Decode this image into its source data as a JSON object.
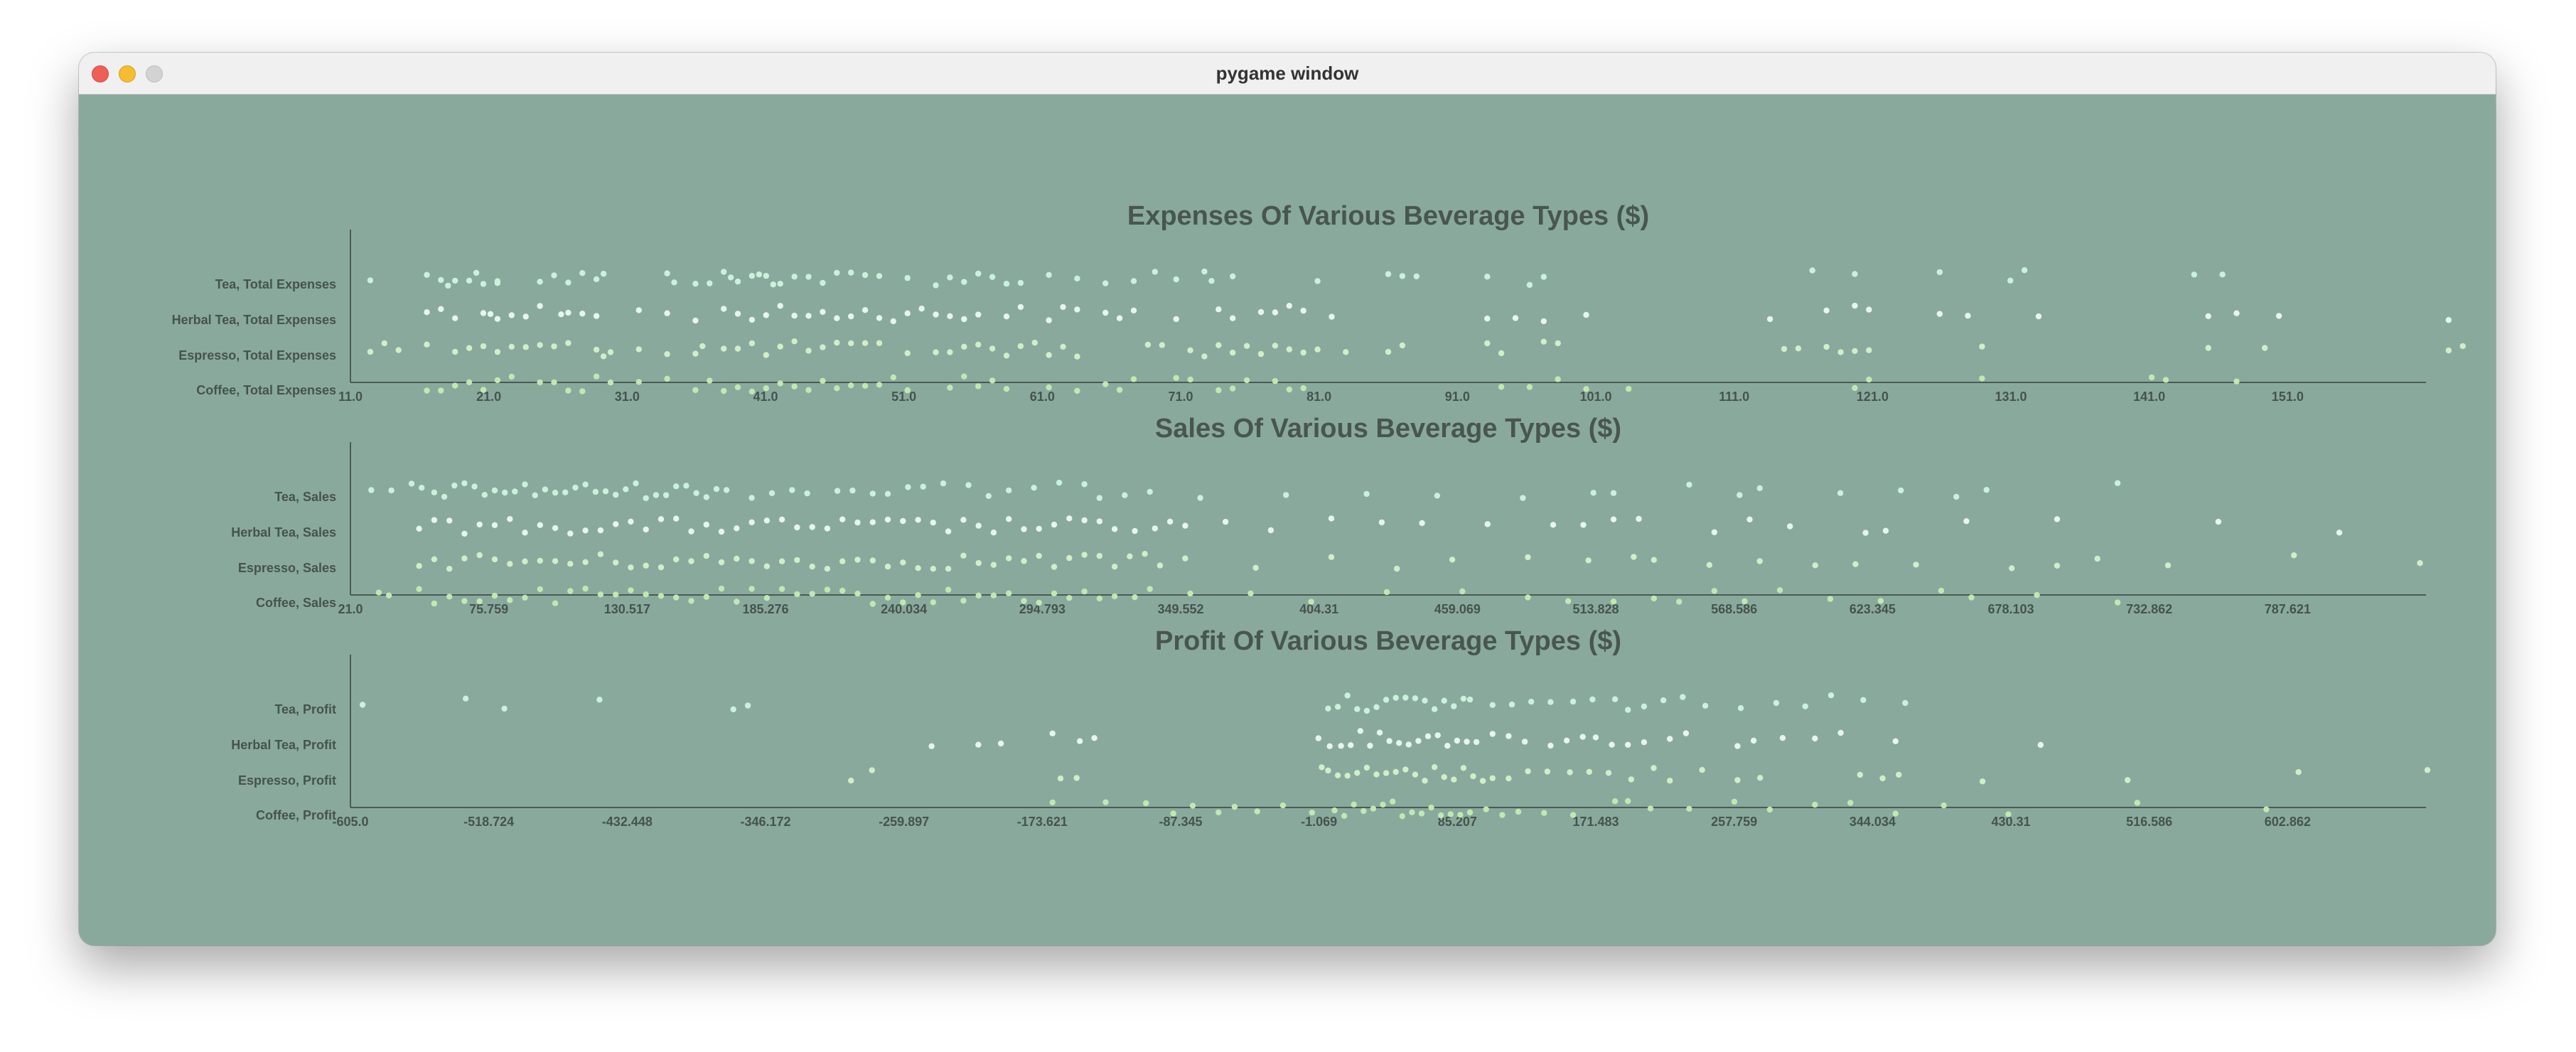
{
  "window": {
    "title": "pygame window"
  },
  "colors": {
    "background": "#8aa99d",
    "axis": "#4a5a54",
    "text": "#45534e",
    "title": "#485650",
    "series": [
      "#c9f2dc",
      "#e6f6ec",
      "#d2eec8",
      "#c2e8b2"
    ]
  },
  "chart_data": [
    {
      "type": "scatter",
      "title": "Expenses Of Various Beverage Types ($)",
      "categories": [
        "Tea, Total Expenses",
        "Herbal Tea, Total Expenses",
        "Espresso, Total Expenses",
        "Coffee, Total Expenses"
      ],
      "tick_labels": [
        "11.0",
        "21.0",
        "31.0",
        "41.0",
        "51.0",
        "61.0",
        "71.0",
        "81.0",
        "91.0",
        "101.0",
        "111.0",
        "121.0",
        "131.0",
        "141.0",
        "151.0"
      ],
      "xlim": [
        11.0,
        157.4
      ],
      "series": [
        {
          "category": "Tea, Total Expenses",
          "values": [
            12,
            16,
            17,
            17.5,
            18,
            19,
            19.5,
            20,
            21,
            21,
            24,
            25,
            26,
            27,
            28,
            28.5,
            33,
            33.5,
            35,
            36,
            37,
            37.5,
            38,
            39,
            39.5,
            40,
            40.5,
            41,
            42,
            43,
            44,
            45,
            46,
            47,
            48,
            50,
            52,
            53,
            54,
            55,
            56,
            57,
            58,
            60,
            62,
            64,
            66,
            67.5,
            69,
            71,
            71.5,
            73,
            79,
            84,
            85,
            86,
            91,
            94,
            95,
            114,
            117,
            123,
            128,
            129,
            141,
            143
          ]
        },
        {
          "category": "Herbal Tea, Total Expenses",
          "values": [
            16,
            17,
            18,
            20,
            20.5,
            21,
            22,
            23,
            24,
            25.5,
            26,
            27,
            28,
            31,
            33,
            35,
            37,
            38,
            39,
            40,
            41,
            42,
            43,
            44,
            45,
            46,
            47,
            48,
            49,
            50,
            51,
            52,
            53,
            54,
            55,
            57,
            58,
            60,
            61,
            62,
            64,
            65,
            66,
            69,
            72,
            73,
            75,
            76,
            77,
            78,
            80,
            91,
            93,
            95,
            98,
            111,
            115,
            117,
            118,
            123,
            125,
            130,
            142,
            144,
            147,
            159
          ]
        },
        {
          "category": "Espresso, Total Expenses",
          "values": [
            12,
            13,
            14,
            16,
            18,
            19,
            20,
            21,
            22,
            23,
            24,
            25,
            26,
            28,
            28.5,
            29,
            31,
            33,
            35,
            35.5,
            37,
            38,
            39,
            40,
            41,
            42,
            43,
            44,
            45,
            46,
            47,
            48,
            50,
            52,
            53,
            54,
            55,
            56,
            57,
            58,
            59,
            60,
            61,
            62,
            67,
            68,
            70,
            71,
            72,
            73,
            74,
            75,
            76,
            77,
            78,
            79,
            81,
            84,
            85,
            91,
            92,
            95,
            96,
            112,
            113,
            115,
            116,
            117,
            118,
            126,
            142,
            146,
            159,
            160
          ]
        },
        {
          "category": "Coffee, Total Expenses",
          "values": [
            16,
            17,
            18,
            19,
            20,
            21,
            22,
            24,
            25,
            26,
            27,
            28,
            29,
            31,
            33,
            35,
            36,
            37,
            38,
            39,
            40,
            41,
            42,
            43,
            44,
            45,
            46,
            47,
            48,
            49,
            50,
            53,
            54,
            55,
            56,
            57,
            60,
            62,
            64,
            65,
            66,
            69,
            70,
            72,
            73,
            74,
            76,
            77,
            78,
            92,
            94,
            96,
            98,
            101,
            117,
            118,
            126,
            138,
            139,
            144
          ]
        }
      ]
    },
    {
      "type": "scatter",
      "title": "Sales Of Various Beverage Types ($)",
      "categories": [
        "Tea, Sales",
        "Herbal Tea, Sales",
        "Espresso, Sales",
        "Coffee, Sales"
      ],
      "tick_labels": [
        "21.0",
        "75.759",
        "130.517",
        "185.276",
        "240.034",
        "294.793",
        "349.552",
        "404.31",
        "459.069",
        "513.828",
        "568.586",
        "623.345",
        "678.103",
        "732.862",
        "787.621"
      ],
      "xlim": [
        21.0,
        842.4
      ],
      "series": [
        {
          "category": "Tea, Sales",
          "values": [
            27,
            35,
            43,
            47,
            52,
            56,
            60,
            64,
            68,
            72,
            76,
            80,
            84,
            88,
            92,
            96,
            100,
            104,
            108,
            112,
            116,
            120,
            124,
            128,
            132,
            136,
            140,
            144,
            148,
            152,
            156,
            160,
            164,
            168,
            178,
            186,
            194,
            200,
            212,
            218,
            226,
            232,
            240,
            246,
            254,
            264,
            272,
            280,
            290,
            300,
            310,
            316,
            326,
            336,
            356,
            390,
            422,
            450,
            484,
            512,
            520,
            550,
            570,
            578,
            610,
            634,
            656,
            668,
            720
          ]
        },
        {
          "category": "Herbal Tea, Sales",
          "values": [
            46,
            52,
            58,
            64,
            70,
            76,
            82,
            88,
            94,
            100,
            106,
            112,
            118,
            124,
            130,
            136,
            142,
            148,
            154,
            160,
            166,
            172,
            178,
            184,
            190,
            196,
            202,
            208,
            214,
            220,
            226,
            232,
            238,
            244,
            250,
            256,
            262,
            268,
            274,
            280,
            286,
            292,
            298,
            304,
            310,
            316,
            322,
            330,
            338,
            344,
            350,
            366,
            384,
            408,
            428,
            444,
            470,
            496,
            508,
            520,
            530,
            560,
            574,
            590,
            620,
            628,
            660,
            696,
            760,
            808
          ]
        },
        {
          "category": "Espresso, Sales",
          "values": [
            46,
            52,
            58,
            64,
            70,
            76,
            82,
            88,
            94,
            100,
            106,
            112,
            118,
            124,
            130,
            136,
            142,
            148,
            154,
            160,
            166,
            172,
            178,
            184,
            190,
            196,
            202,
            208,
            214,
            220,
            226,
            232,
            238,
            244,
            250,
            256,
            262,
            268,
            274,
            280,
            286,
            292,
            298,
            304,
            310,
            316,
            322,
            328,
            334,
            340,
            350,
            378,
            408,
            434,
            456,
            486,
            510,
            528,
            536,
            558,
            578,
            600,
            616,
            640,
            678,
            696,
            712,
            740,
            790,
            840
          ]
        },
        {
          "category": "Coffee, Sales",
          "values": [
            30,
            34,
            46,
            52,
            58,
            64,
            70,
            76,
            82,
            88,
            94,
            100,
            106,
            112,
            118,
            124,
            130,
            136,
            142,
            148,
            154,
            160,
            166,
            172,
            178,
            184,
            190,
            196,
            202,
            208,
            214,
            220,
            226,
            232,
            238,
            244,
            250,
            256,
            262,
            268,
            274,
            280,
            286,
            292,
            298,
            304,
            310,
            316,
            322,
            330,
            336,
            352,
            376,
            400,
            430,
            460,
            486,
            502,
            520,
            536,
            546,
            560,
            572,
            586,
            606,
            626,
            650,
            662,
            688,
            720
          ]
        }
      ]
    },
    {
      "type": "scatter",
      "title": "Profit Of Various Beverage Types ($)",
      "categories": [
        "Tea, Profit",
        "Herbal Tea, Profit",
        "Espresso, Profit",
        "Coffee, Profit"
      ],
      "tick_labels": [
        "-605.0",
        "-518.724",
        "-432.448",
        "-346.172",
        "-259.897",
        "-173.621",
        "-87.345",
        "-1.069",
        "85.207",
        "171.483",
        "257.759",
        "344.034",
        "430.31",
        "516.586",
        "602.862"
      ],
      "xlim": [
        -605.0,
        679.1
      ],
      "series": [
        {
          "category": "Tea, Profit",
          "values": [
            -601,
            -537,
            -513,
            -454,
            -371,
            -362,
            -2,
            4,
            10,
            16,
            22,
            28,
            34,
            40,
            46,
            52,
            58,
            64,
            70,
            76,
            82,
            86,
            100,
            112,
            124,
            136,
            150,
            162,
            176,
            184,
            194,
            206,
            218,
            232,
            254,
            276,
            294,
            310,
            330,
            356
          ]
        },
        {
          "category": "Herbal Tea, Profit",
          "values": [
            -248,
            -219,
            -205,
            -173,
            -156,
            -147,
            -8,
            -1,
            6,
            12,
            18,
            24,
            30,
            36,
            42,
            48,
            54,
            60,
            66,
            72,
            78,
            84,
            90,
            100,
            110,
            120,
            136,
            146,
            156,
            164,
            174,
            184,
            194,
            210,
            220,
            252,
            262,
            280,
            300,
            316,
            350,
            440
          ]
        },
        {
          "category": "Espresso, Profit",
          "values": [
            -298,
            -285,
            -168,
            -158,
            -6,
            -2,
            4,
            10,
            16,
            22,
            28,
            34,
            40,
            46,
            52,
            58,
            64,
            70,
            76,
            82,
            88,
            94,
            100,
            110,
            122,
            134,
            148,
            160,
            172,
            186,
            200,
            210,
            230,
            252,
            266,
            328,
            342,
            352,
            404,
            494,
            600,
            680
          ]
        },
        {
          "category": "Coffee, Profit",
          "values": [
            -173,
            -140,
            -115,
            -98,
            -86,
            -70,
            -60,
            -46,
            -30,
            -12,
            2,
            8,
            14,
            20,
            26,
            32,
            38,
            44,
            50,
            56,
            62,
            68,
            74,
            80,
            86,
            96,
            106,
            116,
            132,
            150,
            176,
            184,
            198,
            222,
            250,
            272,
            300,
            322,
            350,
            380,
            420,
            500,
            580
          ]
        }
      ]
    }
  ]
}
